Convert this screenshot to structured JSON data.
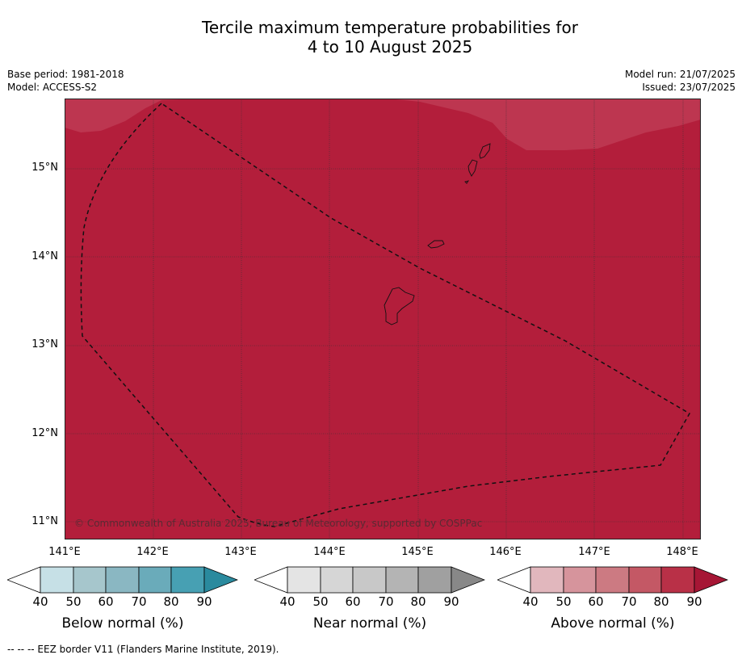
{
  "title_line1": "Tercile maximum temperature probabilities for",
  "title_line2": "4 to 10 August 2025",
  "meta": {
    "base_period": "Base period: 1981-2018",
    "model": "Model: ACCESS-S2",
    "model_run": "Model run: 21/07/2025",
    "issued": "Issued: 23/07/2025"
  },
  "map": {
    "lon_range": [
      141,
      148.2
    ],
    "lat_range": [
      10.8,
      15.8
    ],
    "lat_ticks": [
      "15°N",
      "14°N",
      "13°N",
      "12°N",
      "11°N"
    ],
    "lon_ticks": [
      "141°E",
      "142°E",
      "143°E",
      "144°E",
      "145°E",
      "146°E",
      "147°E",
      "148°E"
    ],
    "fill_color": "#b31e3b",
    "light_fill_color": "#bd3650",
    "copyright": "© Commonwealth of Australia 2025, Bureau of Meteorology, supported by COSPPac"
  },
  "colorbars": [
    {
      "title": "Below normal (%)",
      "ticks": [
        "40",
        "50",
        "60",
        "70",
        "80",
        "90"
      ],
      "colors": [
        "#ffffff",
        "#c6e0e6",
        "#a6c6cc",
        "#8ab7c2",
        "#6aabba",
        "#47a0b3",
        "#2a8a9e"
      ]
    },
    {
      "title": "Near normal (%)",
      "ticks": [
        "40",
        "50",
        "60",
        "70",
        "80",
        "90"
      ],
      "colors": [
        "#ffffff",
        "#e4e4e4",
        "#d6d6d6",
        "#c8c8c8",
        "#b4b4b4",
        "#a0a0a0",
        "#888888"
      ]
    },
    {
      "title": "Above normal (%)",
      "ticks": [
        "40",
        "50",
        "60",
        "70",
        "80",
        "90"
      ],
      "colors": [
        "#ffffff",
        "#e1b7bd",
        "#d6949c",
        "#cc7a82",
        "#c45865",
        "#b93047",
        "#a61635"
      ]
    }
  ],
  "footnote": "--  --  -- EEZ border V11 (Flanders Marine Institute, 2019)."
}
